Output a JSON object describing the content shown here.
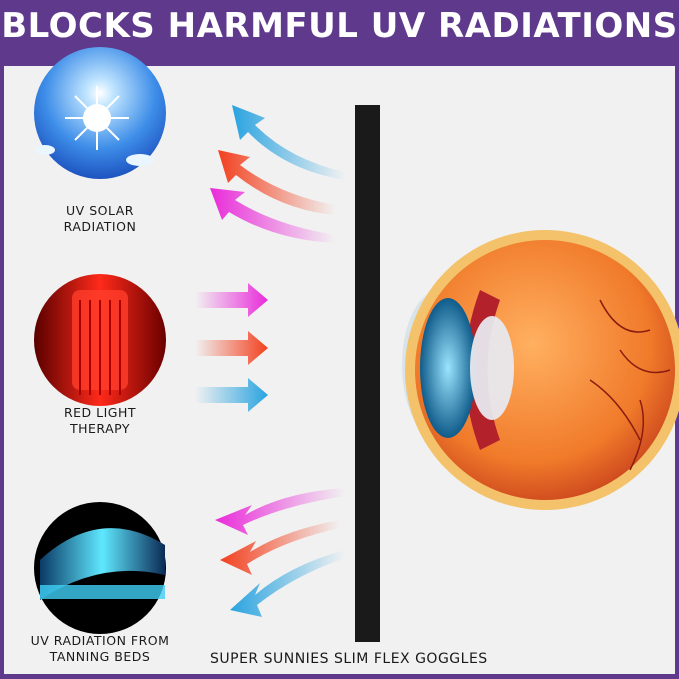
{
  "title": "BLOCKS HARMFUL UV RADIATIONS",
  "sources": [
    {
      "label_line1": "UV SOLAR",
      "label_line2": "RADIATION",
      "icon": "sun-icon"
    },
    {
      "label_line1": "RED LIGHT",
      "label_line2": "THERAPY",
      "icon": "red-light-bed-icon"
    },
    {
      "label_line1": "UV RADIATION FROM",
      "label_line2": "TANNING BEDS",
      "icon": "tanning-bed-icon"
    }
  ],
  "caption": "SUPER SUNNIES SLIM FLEX GOGGLES",
  "colors": {
    "frame": "#5f3a8c",
    "background": "#f1f1f1",
    "blue_arrow": "#29a3e0",
    "red_arrow": "#f2401e",
    "magenta_arrow": "#e92bd9",
    "barrier": "#1a1a1a"
  }
}
